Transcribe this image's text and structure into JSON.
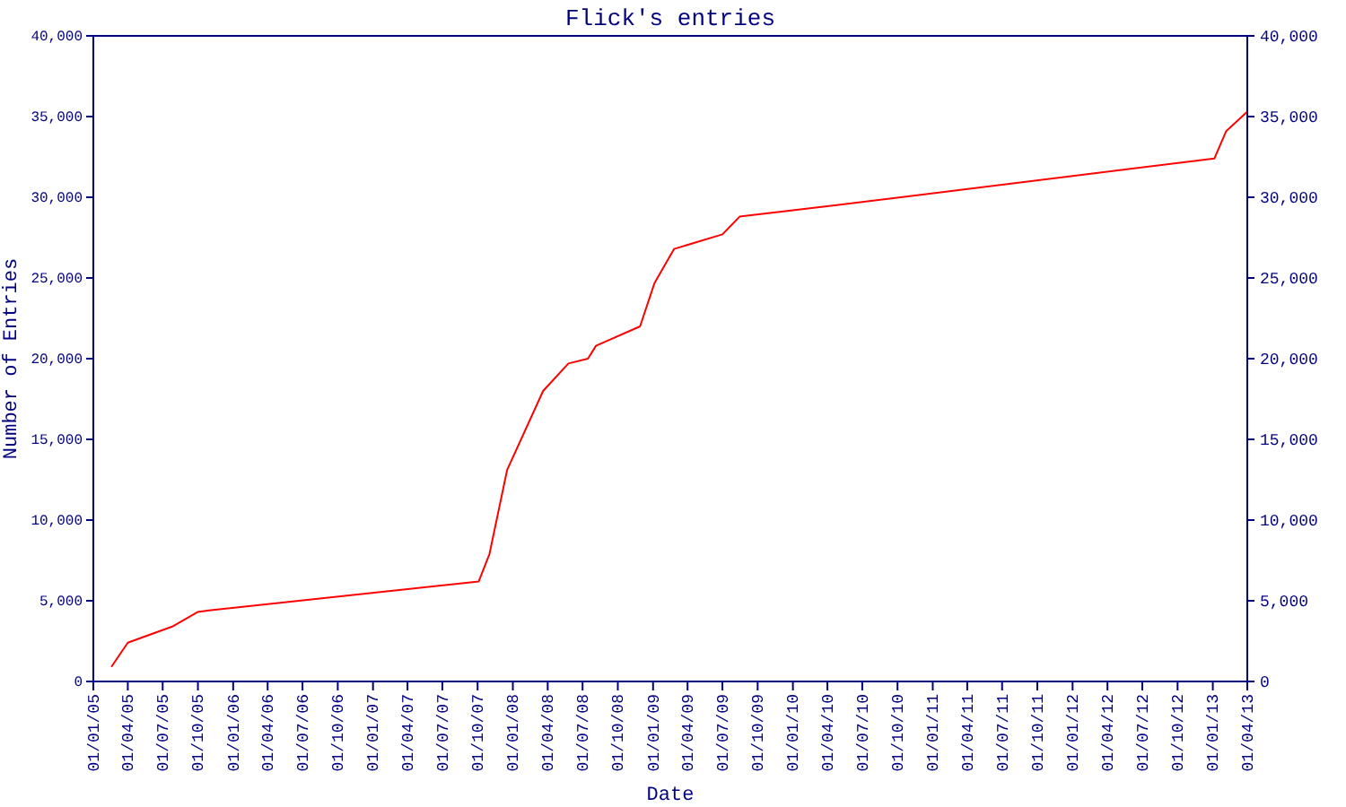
{
  "chart_data": {
    "type": "line",
    "title": "Flick's entries",
    "xlabel": "Date",
    "ylabel": "Number of Entries",
    "xlim": [
      "2005-01-01",
      "2013-04-01"
    ],
    "xticks": [
      {
        "value": "2005-01-01",
        "label": "01/01/05"
      },
      {
        "value": "2005-04-01",
        "label": "01/04/05"
      },
      {
        "value": "2005-07-01",
        "label": "01/07/05"
      },
      {
        "value": "2005-10-01",
        "label": "01/10/05"
      },
      {
        "value": "2006-01-01",
        "label": "01/01/06"
      },
      {
        "value": "2006-04-01",
        "label": "01/04/06"
      },
      {
        "value": "2006-07-01",
        "label": "01/07/06"
      },
      {
        "value": "2006-10-01",
        "label": "01/10/06"
      },
      {
        "value": "2007-01-01",
        "label": "01/01/07"
      },
      {
        "value": "2007-04-01",
        "label": "01/04/07"
      },
      {
        "value": "2007-07-01",
        "label": "01/07/07"
      },
      {
        "value": "2007-10-01",
        "label": "01/10/07"
      },
      {
        "value": "2008-01-01",
        "label": "01/01/08"
      },
      {
        "value": "2008-04-01",
        "label": "01/04/08"
      },
      {
        "value": "2008-07-01",
        "label": "01/07/08"
      },
      {
        "value": "2008-10-01",
        "label": "01/10/08"
      },
      {
        "value": "2009-01-01",
        "label": "01/01/09"
      },
      {
        "value": "2009-04-01",
        "label": "01/04/09"
      },
      {
        "value": "2009-07-01",
        "label": "01/07/09"
      },
      {
        "value": "2009-10-01",
        "label": "01/10/09"
      },
      {
        "value": "2010-01-01",
        "label": "01/01/10"
      },
      {
        "value": "2010-04-01",
        "label": "01/04/10"
      },
      {
        "value": "2010-07-01",
        "label": "01/07/10"
      },
      {
        "value": "2010-10-01",
        "label": "01/10/10"
      },
      {
        "value": "2011-01-01",
        "label": "01/01/11"
      },
      {
        "value": "2011-04-01",
        "label": "01/04/11"
      },
      {
        "value": "2011-07-01",
        "label": "01/07/11"
      },
      {
        "value": "2011-10-01",
        "label": "01/10/11"
      },
      {
        "value": "2012-01-01",
        "label": "01/01/12"
      },
      {
        "value": "2012-04-01",
        "label": "01/04/12"
      },
      {
        "value": "2012-07-01",
        "label": "01/07/12"
      },
      {
        "value": "2012-10-01",
        "label": "01/10/12"
      },
      {
        "value": "2013-01-01",
        "label": "01/01/13"
      },
      {
        "value": "2013-04-01",
        "label": "01/04/13"
      }
    ],
    "ylim": [
      0,
      40000
    ],
    "yticks": [
      0,
      {
        "value": 5000,
        "label": "5,000"
      },
      {
        "value": 10000,
        "label": "10,000"
      },
      {
        "value": 15000,
        "label": "15,000"
      },
      {
        "value": 20000,
        "label": "20,000"
      },
      {
        "value": 25000,
        "label": "25,000"
      },
      {
        "value": 30000,
        "label": "30,000"
      },
      {
        "value": 35000,
        "label": "35,000"
      },
      {
        "value": 40000,
        "label": "40,000"
      }
    ],
    "y2lim": [
      0,
      40000
    ],
    "y2ticks": [
      0,
      {
        "value": 5000,
        "label": "5,000"
      },
      {
        "value": 10000,
        "label": "10,000"
      },
      {
        "value": 15000,
        "label": "15,000"
      },
      {
        "value": 20000,
        "label": "20,000"
      },
      {
        "value": 25000,
        "label": "25,000"
      },
      {
        "value": 30000,
        "label": "30,000"
      },
      {
        "value": 35000,
        "label": "35,000"
      },
      {
        "value": 40000,
        "label": "40,000"
      }
    ],
    "grid": false,
    "x": [
      "2005-02-17",
      "2005-04-01",
      "2005-07-26",
      "2005-09-30",
      "2005-10-30",
      "2007-10-04",
      "2007-11-01",
      "2007-12-17",
      "2008-03-20",
      "2008-05-25",
      "2008-07-15",
      "2008-08-05",
      "2008-11-28",
      "2009-01-05",
      "2009-02-25",
      "2009-07-01",
      "2009-08-15",
      "2010-04-20",
      "2013-01-05",
      "2013-02-05",
      "2013-04-01"
    ],
    "series": [
      {
        "color": "#ff0000",
        "values": [
          900,
          2400,
          3400,
          4300,
          4400,
          6200,
          7900,
          13100,
          18000,
          19700,
          20000,
          20800,
          22000,
          24700,
          26800,
          27700,
          28800,
          29500,
          32400,
          34100,
          35300
        ]
      }
    ]
  }
}
